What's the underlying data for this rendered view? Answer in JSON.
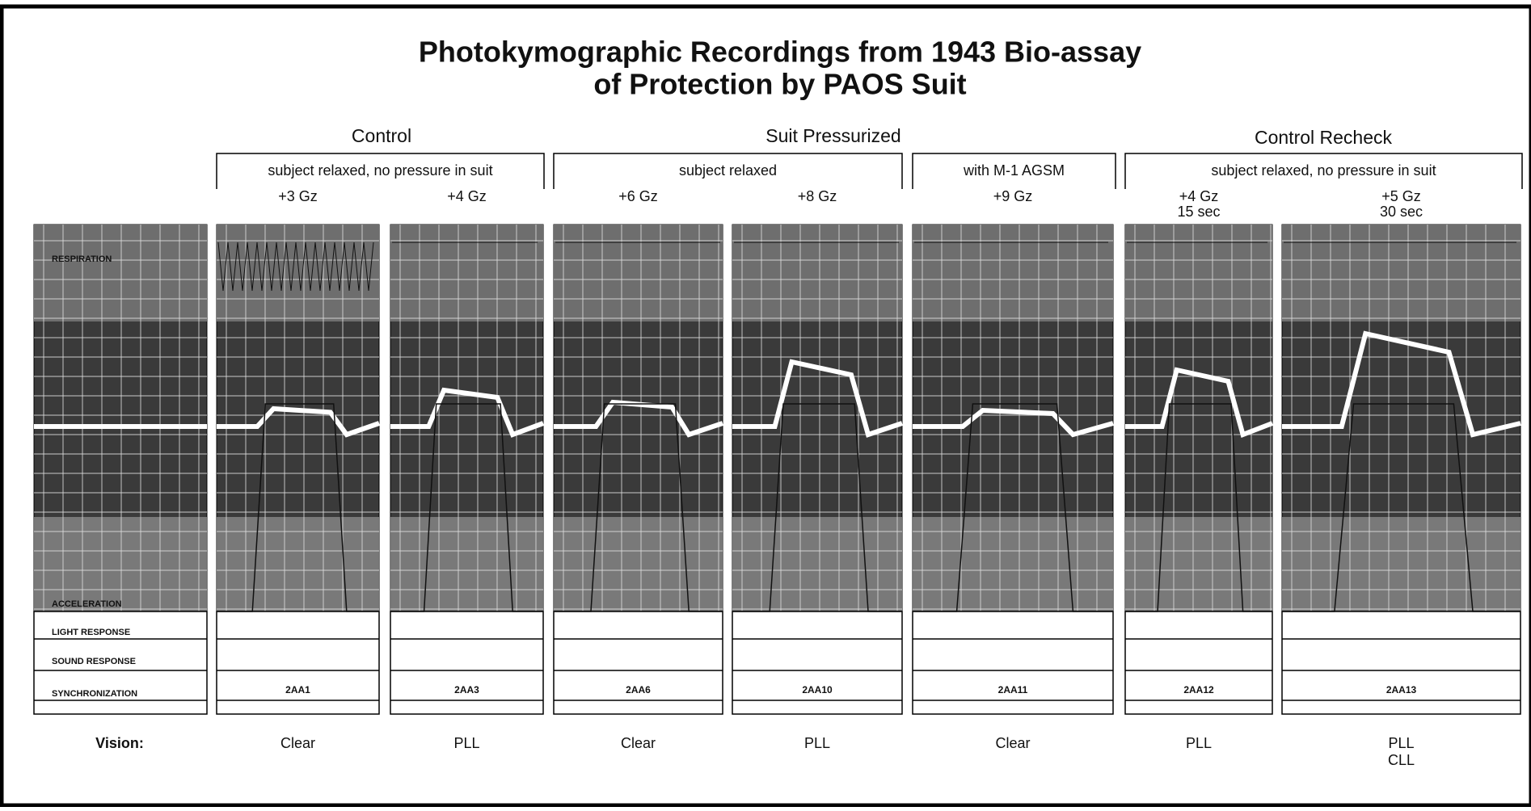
{
  "title": [
    "Photokymographic Recordings from 1943 Bio-assay",
    "of Protection by PAOS Suit"
  ],
  "groups": [
    "Control",
    "Suit Pressurized",
    "Control Recheck"
  ],
  "conditions": [
    "subject relaxed, no pressure in suit",
    "subject relaxed",
    "with M-1 AGSM",
    "subject relaxed, no pressure in suit"
  ],
  "track_labels": [
    "RESPIRATION",
    "ACCELERATION",
    "LIGHT RESPONSE",
    "SOUND RESPONSE",
    "SYNCHRONIZATION"
  ],
  "vision_label": "Vision:",
  "panels": [
    {
      "gz": [
        "+3 Gz"
      ],
      "code": "2AA1",
      "vision": [
        "Clear"
      ]
    },
    {
      "gz": [
        "+4 Gz"
      ],
      "code": "2AA3",
      "vision": [
        "PLL"
      ]
    },
    {
      "gz": [
        "+6 Gz"
      ],
      "code": "2AA6",
      "vision": [
        "Clear"
      ]
    },
    {
      "gz": [
        "+8 Gz"
      ],
      "code": "2AA10",
      "vision": [
        "PLL"
      ]
    },
    {
      "gz": [
        "+9 Gz"
      ],
      "code": "2AA11",
      "vision": [
        "Clear"
      ]
    },
    {
      "gz": [
        "+4 Gz",
        "15 sec"
      ],
      "code": "2AA12",
      "vision": [
        "PLL"
      ]
    },
    {
      "gz": [
        "+5 Gz",
        "30 sec"
      ],
      "code": "2AA13",
      "vision": [
        "PLL",
        "CLL"
      ]
    }
  ]
}
